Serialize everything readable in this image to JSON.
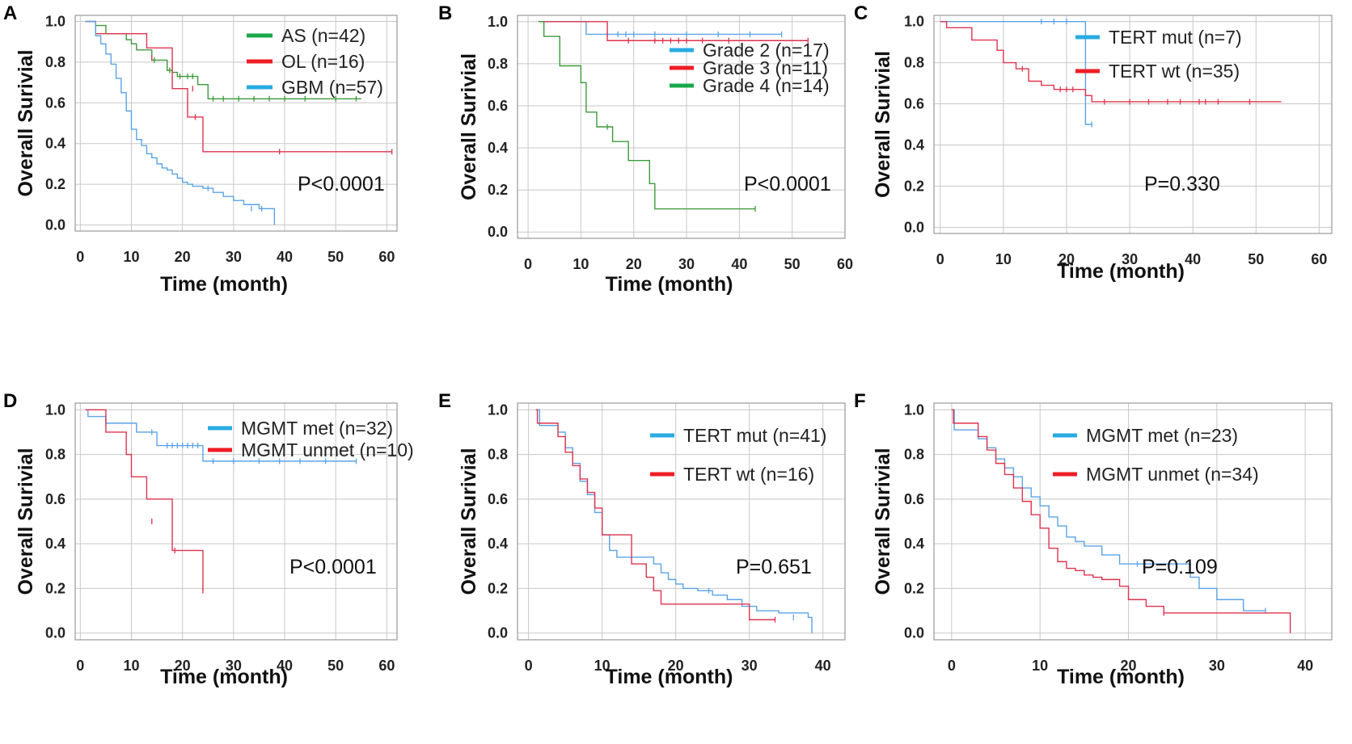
{
  "colors": {
    "legend_green": "#1aa84a",
    "legend_red": "#ee1c25",
    "legend_blue": "#29abe2",
    "curve_green": "#3c9a3c",
    "curve_red": "#e0334f",
    "curve_blue": "#5ba3e6"
  },
  "chart_data": [
    {
      "type": "line",
      "panel": "A",
      "title": "",
      "xlabel": "Time (month)",
      "ylabel": "Overall Surivial",
      "xlim": [
        -1,
        62
      ],
      "ylim": [
        -0.03,
        1.03
      ],
      "xticks": [
        0,
        10,
        20,
        30,
        40,
        50,
        60
      ],
      "yticks": [
        0.0,
        0.2,
        0.4,
        0.6,
        0.8,
        1.0
      ],
      "ytick_labels": [
        "0.0",
        "0.2",
        "0.4",
        "0.6",
        "0.8",
        "1.0"
      ],
      "xtick_labels": [
        "0",
        "10",
        "20",
        "30",
        "40",
        "50",
        "60"
      ],
      "grid": true,
      "pvalue": "P<0.0001",
      "legend_position": "top-right",
      "series": [
        {
          "name": "AS (n=42)",
          "legend_color": "legend_green",
          "color": "curve_green",
          "x": [
            1,
            3,
            5,
            9,
            10,
            11,
            14,
            17,
            18,
            19,
            23,
            25,
            55
          ],
          "y": [
            1.0,
            0.98,
            0.94,
            0.91,
            0.89,
            0.86,
            0.81,
            0.76,
            0.75,
            0.73,
            0.69,
            0.62,
            0.62
          ],
          "censored": [
            [
              14.5,
              0.81
            ],
            [
              17.5,
              0.76
            ],
            [
              19.5,
              0.73
            ],
            [
              21,
              0.73
            ],
            [
              22,
              0.73
            ],
            [
              26,
              0.62
            ],
            [
              28,
              0.62
            ],
            [
              31,
              0.62
            ],
            [
              34,
              0.62
            ],
            [
              37,
              0.62
            ],
            [
              40,
              0.62
            ],
            [
              44,
              0.62
            ],
            [
              50,
              0.62
            ],
            [
              54,
              0.62
            ]
          ]
        },
        {
          "name": "OL (n=16)",
          "legend_color": "legend_red",
          "color": "curve_red",
          "x": [
            1,
            3,
            8,
            13,
            18,
            21,
            24,
            61
          ],
          "y": [
            1.0,
            0.94,
            0.94,
            0.87,
            0.67,
            0.53,
            0.36,
            0.36
          ],
          "censored": [
            [
              14,
              0.82
            ],
            [
              22,
              0.67
            ],
            [
              22.5,
              0.53
            ],
            [
              39,
              0.36
            ],
            [
              61,
              0.36
            ]
          ]
        },
        {
          "name": "GBM (n=57)",
          "legend_color": "legend_blue",
          "color": "curve_blue",
          "x": [
            1,
            3,
            4,
            5,
            6,
            7,
            8,
            9,
            10,
            11,
            12,
            13,
            14,
            15,
            16,
            17,
            18,
            19,
            20,
            21,
            22,
            24,
            26,
            28,
            30,
            32,
            35,
            38
          ],
          "y": [
            1.0,
            0.93,
            0.89,
            0.84,
            0.79,
            0.72,
            0.65,
            0.56,
            0.47,
            0.42,
            0.39,
            0.35,
            0.33,
            0.3,
            0.28,
            0.27,
            0.25,
            0.23,
            0.21,
            0.2,
            0.19,
            0.18,
            0.16,
            0.14,
            0.12,
            0.1,
            0.08,
            0.0
          ],
          "censored": [
            [
              25,
              0.18
            ],
            [
              33.5,
              0.08
            ],
            [
              35.5,
              0.08
            ]
          ]
        }
      ]
    },
    {
      "type": "line",
      "panel": "B",
      "title": "",
      "xlabel": "Time (month)",
      "ylabel": "Overall Surivial",
      "xlim": [
        -2,
        60
      ],
      "ylim": [
        -0.03,
        1.03
      ],
      "xticks": [
        0,
        10,
        20,
        30,
        40,
        50,
        60
      ],
      "yticks": [
        0.0,
        0.2,
        0.4,
        0.6,
        0.8,
        1.0
      ],
      "ytick_labels": [
        "0.0",
        "0.2",
        "0.4",
        "0.6",
        "0.8",
        "1.0"
      ],
      "xtick_labels": [
        "0",
        "10",
        "20",
        "30",
        "40",
        "50",
        "60"
      ],
      "grid": true,
      "pvalue": "P<0.0001",
      "legend_position": "top-right",
      "series": [
        {
          "name": "Grade 2 (n=17)",
          "legend_color": "legend_blue",
          "color": "curve_blue",
          "x": [
            2,
            11,
            48
          ],
          "y": [
            1.0,
            0.94,
            0.94
          ],
          "censored": [
            [
              15,
              0.94
            ],
            [
              17,
              0.94
            ],
            [
              18.5,
              0.94
            ],
            [
              20,
              0.94
            ],
            [
              24,
              0.94
            ],
            [
              30,
              0.94
            ],
            [
              36,
              0.94
            ],
            [
              42,
              0.94
            ],
            [
              48,
              0.94
            ]
          ]
        },
        {
          "name": "Grade 3 (n=11)",
          "legend_color": "legend_red",
          "color": "curve_red",
          "x": [
            2,
            15,
            53
          ],
          "y": [
            1.0,
            0.91,
            0.91
          ],
          "censored": [
            [
              19,
              0.91
            ],
            [
              24,
              0.91
            ],
            [
              25.5,
              0.91
            ],
            [
              27,
              0.91
            ],
            [
              28.5,
              0.91
            ],
            [
              30,
              0.91
            ],
            [
              33,
              0.91
            ],
            [
              38,
              0.91
            ],
            [
              53,
              0.91
            ]
          ]
        },
        {
          "name": "Grade 4 (n=14)",
          "legend_color": "legend_green",
          "color": "curve_green",
          "x": [
            2,
            3,
            6,
            10,
            11,
            13,
            16,
            19,
            23,
            24,
            43
          ],
          "y": [
            1.0,
            0.93,
            0.79,
            0.71,
            0.57,
            0.5,
            0.43,
            0.34,
            0.23,
            0.11,
            0.11
          ],
          "censored": [
            [
              15,
              0.5
            ],
            [
              43,
              0.11
            ]
          ]
        }
      ]
    },
    {
      "type": "line",
      "panel": "C",
      "title": "",
      "xlabel": "Time (month)",
      "ylabel": "Overall Surivial",
      "xlim": [
        -1,
        62
      ],
      "ylim": [
        -0.03,
        1.03
      ],
      "xticks": [
        0,
        10,
        20,
        30,
        40,
        50,
        60
      ],
      "yticks": [
        0.0,
        0.2,
        0.4,
        0.6,
        0.8,
        1.0
      ],
      "ytick_labels": [
        "0.0",
        "0.2",
        "0.4",
        "0.6",
        "0.8",
        "1.0"
      ],
      "xtick_labels": [
        "0",
        "10",
        "20",
        "30",
        "40",
        "50",
        "60"
      ],
      "grid": true,
      "pvalue": "P=0.330",
      "legend_position": "top-right",
      "series": [
        {
          "name": "TERT mut (n=7)",
          "legend_color": "legend_blue",
          "color": "curve_blue",
          "x": [
            0,
            23,
            24
          ],
          "y": [
            1.0,
            0.5,
            0.5
          ],
          "censored": [
            [
              16,
              1.0
            ],
            [
              18,
              1.0
            ],
            [
              20,
              1.0
            ],
            [
              24,
              0.5
            ]
          ]
        },
        {
          "name": "TERT wt (n=35)",
          "legend_color": "legend_red",
          "color": "curve_red",
          "x": [
            0,
            1,
            5,
            9,
            10,
            12,
            14,
            16,
            18,
            23,
            24,
            54
          ],
          "y": [
            1.0,
            0.97,
            0.91,
            0.86,
            0.8,
            0.77,
            0.71,
            0.69,
            0.67,
            0.64,
            0.61,
            0.61
          ],
          "censored": [
            [
              13,
              0.77
            ],
            [
              19,
              0.67
            ],
            [
              20,
              0.67
            ],
            [
              21,
              0.67
            ],
            [
              26,
              0.61
            ],
            [
              30,
              0.61
            ],
            [
              33,
              0.61
            ],
            [
              36,
              0.61
            ],
            [
              38,
              0.61
            ],
            [
              41,
              0.61
            ],
            [
              42,
              0.61
            ],
            [
              44,
              0.61
            ],
            [
              49,
              0.61
            ]
          ]
        }
      ]
    },
    {
      "type": "line",
      "panel": "D",
      "title": "",
      "xlabel": "Time (month)",
      "ylabel": "Overall Surivial",
      "xlim": [
        -1,
        62
      ],
      "ylim": [
        -0.03,
        1.03
      ],
      "xticks": [
        0,
        10,
        20,
        30,
        40,
        50,
        60
      ],
      "yticks": [
        0.0,
        0.2,
        0.4,
        0.6,
        0.8,
        1.0
      ],
      "ytick_labels": [
        "0.0",
        "0.2",
        "0.4",
        "0.6",
        "0.8",
        "1.0"
      ],
      "xtick_labels": [
        "0",
        "10",
        "20",
        "30",
        "40",
        "50",
        "60"
      ],
      "grid": true,
      "pvalue": "P<0.0001",
      "legend_position": "top-right",
      "series": [
        {
          "name": "MGMT met (n=32)",
          "legend_color": "legend_blue",
          "color": "curve_blue",
          "x": [
            1,
            1.5,
            5,
            11,
            15,
            24,
            54
          ],
          "y": [
            1.0,
            0.97,
            0.94,
            0.9,
            0.84,
            0.77,
            0.77
          ],
          "censored": [
            [
              14,
              0.9
            ],
            [
              17,
              0.84
            ],
            [
              18,
              0.84
            ],
            [
              19,
              0.84
            ],
            [
              20,
              0.84
            ],
            [
              21,
              0.84
            ],
            [
              22,
              0.84
            ],
            [
              23,
              0.84
            ],
            [
              26,
              0.77
            ],
            [
              30,
              0.77
            ],
            [
              35,
              0.77
            ],
            [
              39,
              0.77
            ],
            [
              43,
              0.77
            ],
            [
              48,
              0.77
            ],
            [
              54,
              0.77
            ]
          ]
        },
        {
          "name": "MGMT unmet (n=10)",
          "legend_color": "legend_red",
          "color": "curve_red",
          "x": [
            1,
            5,
            9,
            10,
            13,
            18,
            24
          ],
          "y": [
            1.0,
            0.9,
            0.8,
            0.7,
            0.6,
            0.37,
            0.19
          ],
          "censored": [
            [
              14,
              0.5
            ],
            [
              18.5,
              0.37
            ],
            [
              24,
              0.19
            ]
          ]
        }
      ]
    },
    {
      "type": "line",
      "panel": "E",
      "title": "",
      "xlabel": "Time (month)",
      "ylabel": "Overall Surivial",
      "xlim": [
        -1.5,
        43
      ],
      "ylim": [
        -0.03,
        1.03
      ],
      "xticks": [
        0,
        10,
        20,
        30,
        40
      ],
      "yticks": [
        0.0,
        0.2,
        0.4,
        0.6,
        0.8,
        1.0
      ],
      "ytick_labels": [
        "0.0",
        "0.2",
        "0.4",
        "0.6",
        "0.8",
        "1.0"
      ],
      "xtick_labels": [
        "0",
        "10",
        "20",
        "30",
        "40"
      ],
      "grid": true,
      "pvalue": "P=0.651",
      "legend_position": "top-right",
      "series": [
        {
          "name": "TERT mut (n=41)",
          "legend_color": "legend_blue",
          "color": "curve_blue",
          "x": [
            1,
            1.5,
            4,
            5,
            6,
            7,
            8,
            9,
            10,
            11,
            12,
            14,
            17,
            18,
            19,
            20,
            21,
            23,
            24,
            25,
            27,
            29,
            31,
            34,
            38,
            38.5
          ],
          "y": [
            1.0,
            0.93,
            0.9,
            0.83,
            0.76,
            0.68,
            0.62,
            0.54,
            0.44,
            0.37,
            0.34,
            0.34,
            0.31,
            0.27,
            0.24,
            0.22,
            0.2,
            0.19,
            0.19,
            0.17,
            0.15,
            0.12,
            0.1,
            0.09,
            0.07,
            0.0
          ],
          "censored": [
            [
              24.5,
              0.19
            ],
            [
              36,
              0.07
            ]
          ]
        },
        {
          "name": "TERT wt (n=16)",
          "legend_color": "legend_red",
          "color": "curve_red",
          "x": [
            1,
            1.2,
            4,
            5,
            6,
            7,
            8,
            9,
            10,
            14,
            16,
            17,
            18,
            30,
            33.5
          ],
          "y": [
            1.0,
            0.94,
            0.88,
            0.81,
            0.75,
            0.69,
            0.63,
            0.56,
            0.44,
            0.31,
            0.25,
            0.19,
            0.13,
            0.06,
            0.06
          ],
          "censored": [
            [
              33.5,
              0.06
            ]
          ]
        }
      ]
    },
    {
      "type": "line",
      "panel": "F",
      "title": "",
      "xlabel": "Time (month)",
      "ylabel": "Overall Surivial",
      "xlim": [
        -2,
        43
      ],
      "ylim": [
        -0.03,
        1.03
      ],
      "xticks": [
        0,
        10,
        20,
        30,
        40
      ],
      "yticks": [
        0.0,
        0.2,
        0.4,
        0.6,
        0.8,
        1.0
      ],
      "ytick_labels": [
        "0.0",
        "0.2",
        "0.4",
        "0.6",
        "0.8",
        "1.0"
      ],
      "xtick_labels": [
        "0",
        "10",
        "20",
        "30",
        "40"
      ],
      "grid": true,
      "pvalue": "P=0.109",
      "legend_position": "top-right",
      "series": [
        {
          "name": "MGMT met (n=23)",
          "legend_color": "legend_blue",
          "color": "curve_blue",
          "x": [
            0,
            0.3,
            3,
            4,
            5,
            6,
            7,
            8,
            9,
            10,
            11,
            12,
            13,
            14,
            15,
            17,
            19,
            21,
            26,
            27,
            28,
            30,
            33,
            35.5
          ],
          "y": [
            1.0,
            0.91,
            0.87,
            0.83,
            0.78,
            0.74,
            0.7,
            0.65,
            0.61,
            0.57,
            0.52,
            0.48,
            0.43,
            0.41,
            0.39,
            0.35,
            0.31,
            0.31,
            0.31,
            0.25,
            0.2,
            0.15,
            0.1,
            0.1
          ],
          "censored": [
            [
              21,
              0.31
            ],
            [
              35.5,
              0.1
            ]
          ]
        },
        {
          "name": "MGMT unmet (n=34)",
          "legend_color": "legend_red",
          "color": "curve_red",
          "x": [
            0,
            0.2,
            3,
            4,
            5,
            6,
            7,
            8,
            9,
            10,
            11,
            12,
            13,
            14,
            15,
            16,
            17,
            18,
            19,
            20,
            22,
            24,
            38,
            38.3
          ],
          "y": [
            1.0,
            0.94,
            0.88,
            0.82,
            0.76,
            0.71,
            0.65,
            0.59,
            0.53,
            0.47,
            0.38,
            0.32,
            0.29,
            0.28,
            0.26,
            0.25,
            0.24,
            0.24,
            0.21,
            0.15,
            0.12,
            0.09,
            0.09,
            0.0
          ],
          "censored": [
            [
              24,
              0.09
            ]
          ]
        }
      ]
    }
  ]
}
